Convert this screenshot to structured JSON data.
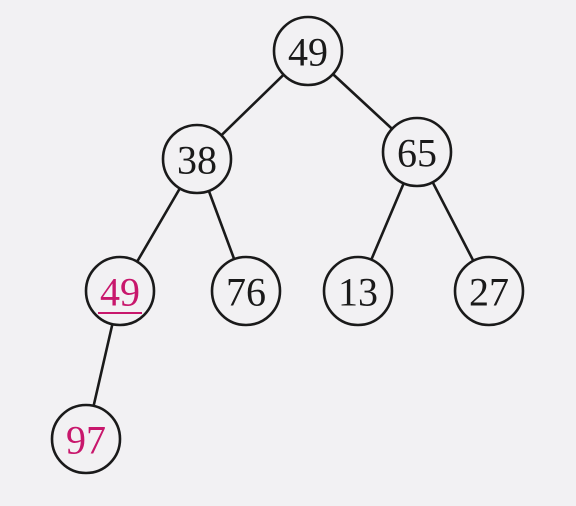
{
  "tree": {
    "colors": {
      "default": "#1a1a1a",
      "highlight": "#c8176c"
    },
    "nodes": [
      {
        "id": "root",
        "label": "49",
        "highlight": false,
        "underline": false
      },
      {
        "id": "left",
        "label": "38",
        "highlight": false,
        "underline": false
      },
      {
        "id": "right",
        "label": "65",
        "highlight": false,
        "underline": false
      },
      {
        "id": "left-left",
        "label": "49",
        "highlight": true,
        "underline": true
      },
      {
        "id": "left-right",
        "label": "76",
        "highlight": false,
        "underline": false
      },
      {
        "id": "right-left",
        "label": "13",
        "highlight": false,
        "underline": false
      },
      {
        "id": "right-right",
        "label": "27",
        "highlight": false,
        "underline": false
      },
      {
        "id": "left-left-left",
        "label": "97",
        "highlight": true,
        "underline": false
      }
    ],
    "edges": [
      {
        "from": "root",
        "to": "left"
      },
      {
        "from": "root",
        "to": "right"
      },
      {
        "from": "left",
        "to": "left-left"
      },
      {
        "from": "left",
        "to": "left-right"
      },
      {
        "from": "right",
        "to": "right-left"
      },
      {
        "from": "right",
        "to": "right-right"
      },
      {
        "from": "left-left",
        "to": "left-left-left"
      }
    ]
  }
}
